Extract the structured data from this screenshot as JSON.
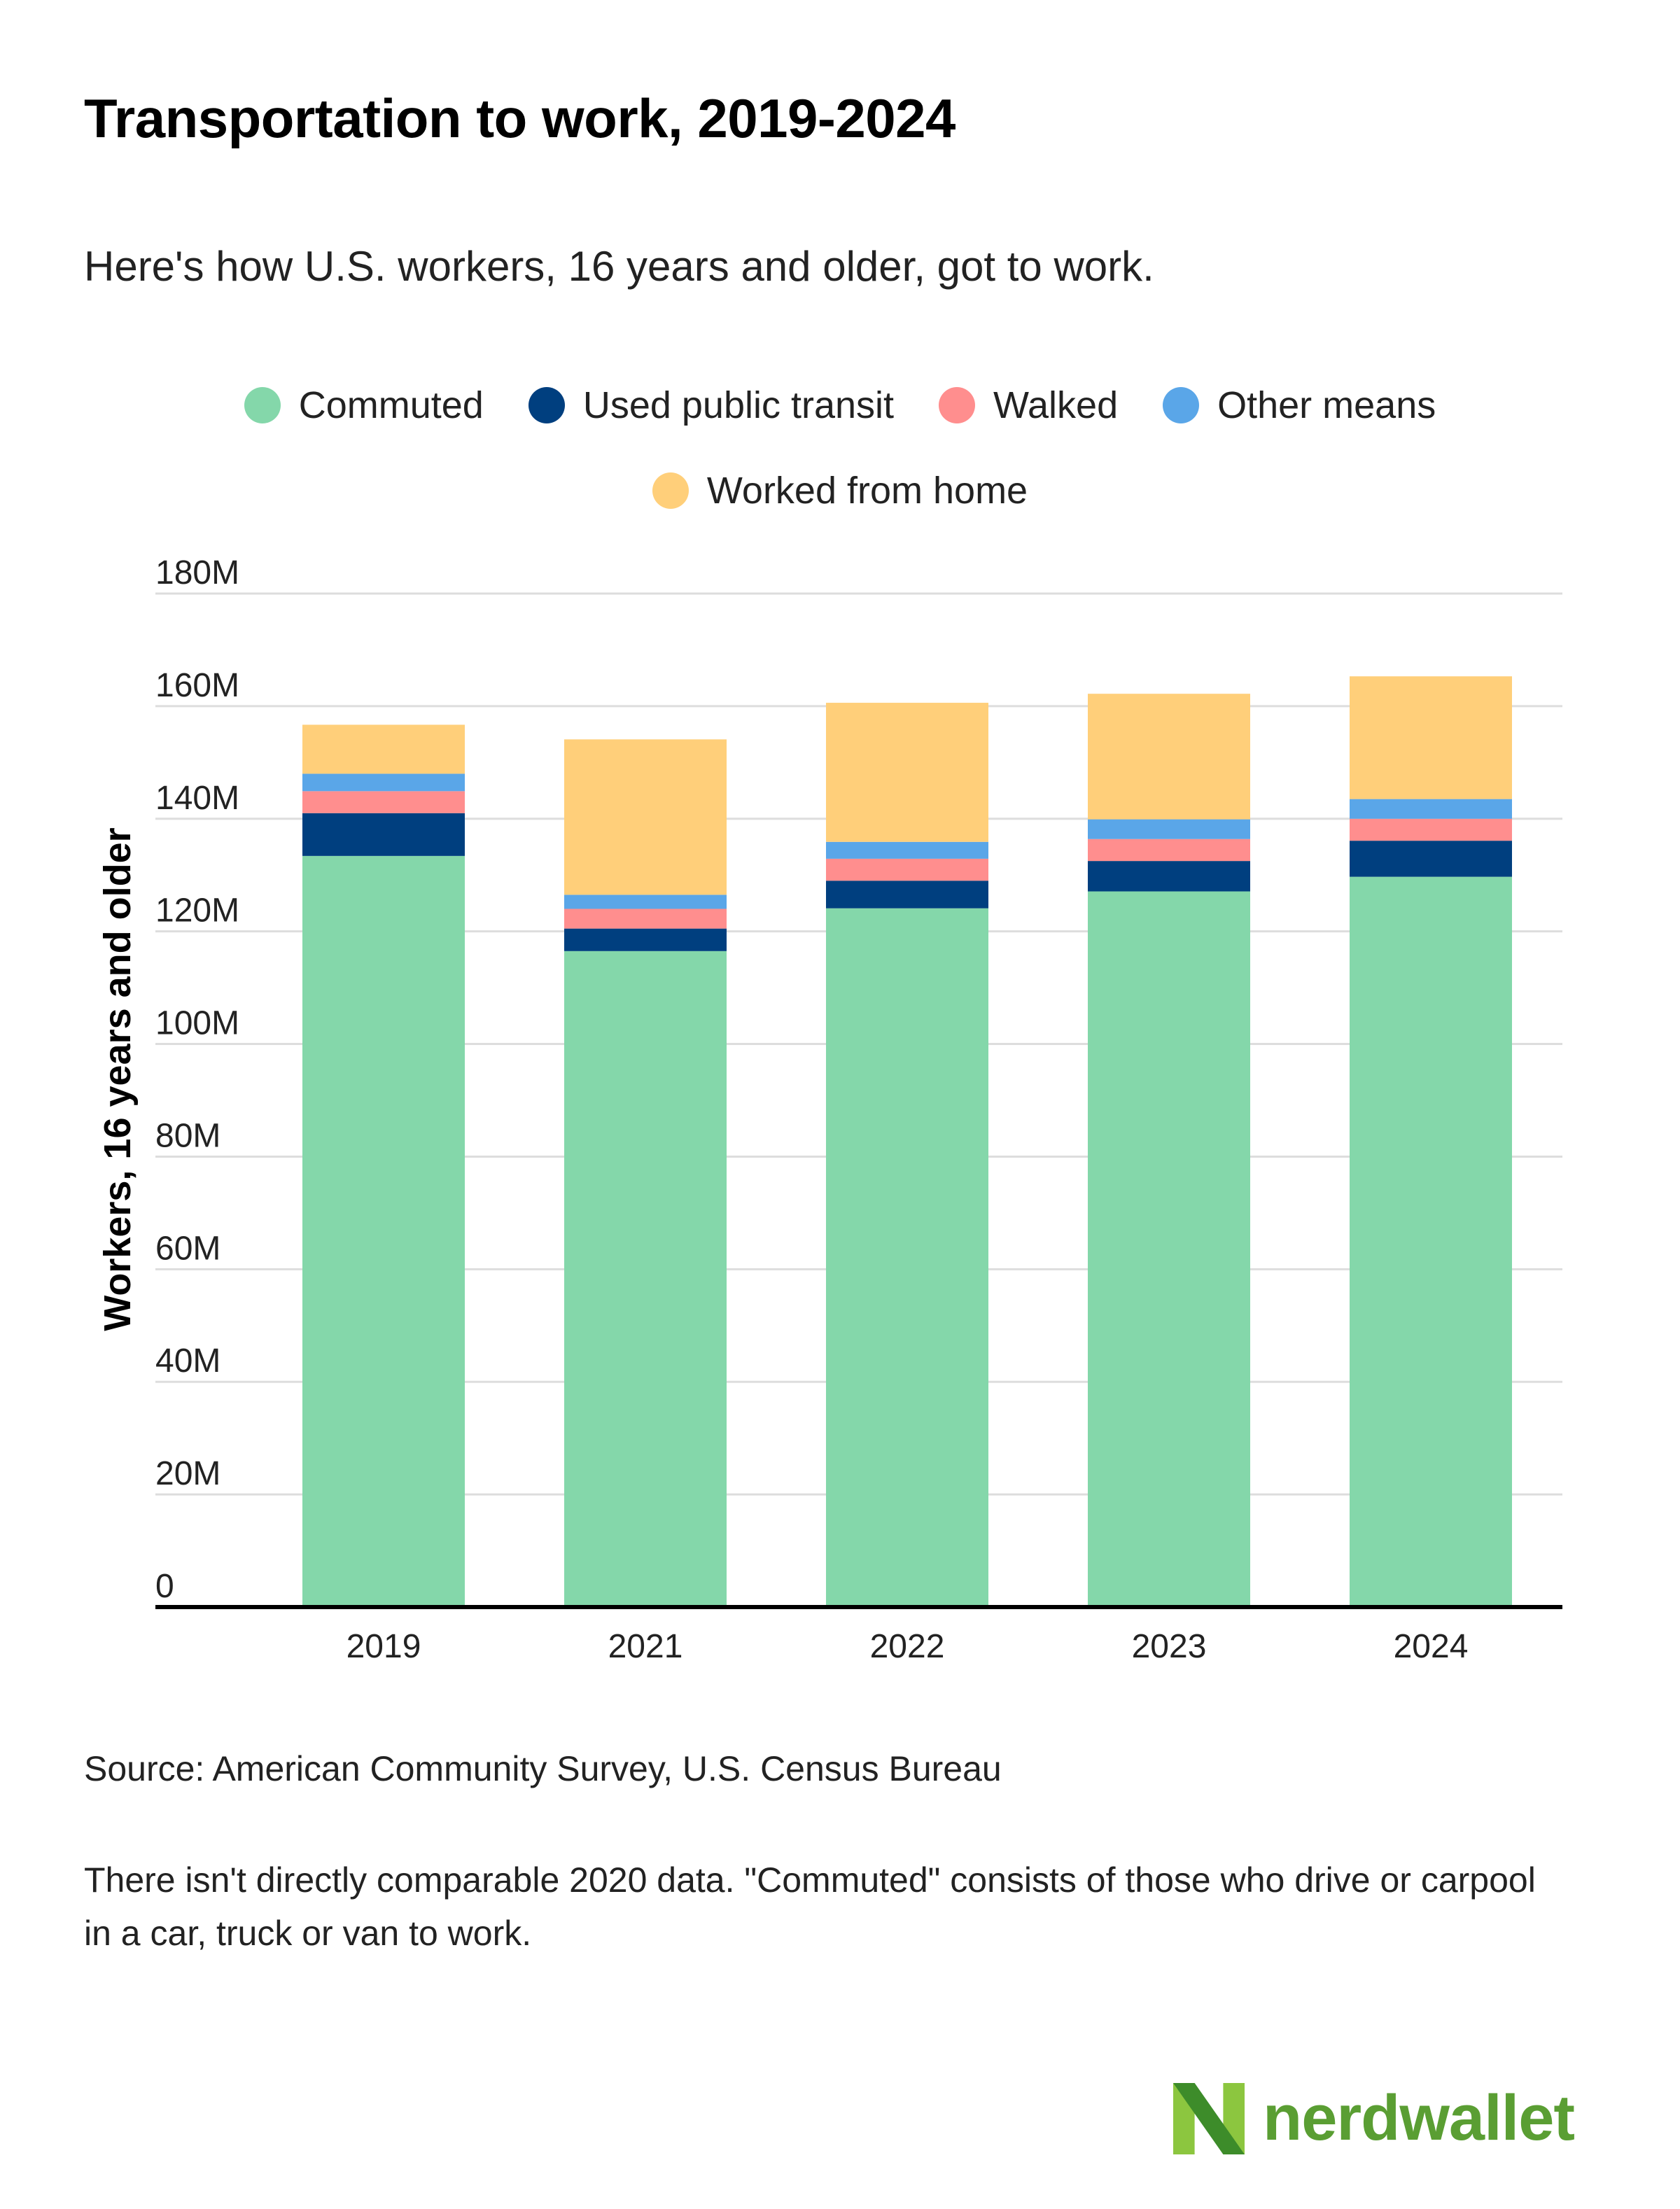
{
  "title": "Transportation to work, 2019-2024",
  "subtitle": "Here's how U.S. workers, 16 years and older, got to work.",
  "source": "Source: American Community Survey, U.S. Census Bureau",
  "footnote": "There isn't directly comparable 2020 data. \"Commuted\" consists of those who drive or carpool in a car, truck or van to work.",
  "brand": {
    "name": "nerdwallet",
    "color": "#5a9e33",
    "mark_colors": [
      "#3d8c2a",
      "#8cc63f"
    ]
  },
  "chart_data": {
    "type": "bar",
    "stacked": true,
    "title": "Transportation to work, 2019-2024",
    "subtitle": "Here's how U.S. workers, 16 years and older, got to work.",
    "xlabel": "",
    "ylabel": "Workers, 16 years and older",
    "categories": [
      "2019",
      "2021",
      "2022",
      "2023",
      "2024"
    ],
    "ylim": [
      0,
      180000000
    ],
    "yticks": [
      0,
      20000000,
      40000000,
      60000000,
      80000000,
      100000000,
      120000000,
      140000000,
      160000000,
      180000000
    ],
    "ytick_labels": [
      "0",
      "20M",
      "40M",
      "60M",
      "80M",
      "100M",
      "120M",
      "140M",
      "160M",
      "180M"
    ],
    "grid": true,
    "legend_position": "top-center",
    "series": [
      {
        "name": "Commuted",
        "color": "#84d7aa",
        "values": [
          133400000,
          116500000,
          124100000,
          127100000,
          129700000
        ]
      },
      {
        "name": "Used public transit",
        "color": "#003f7f",
        "values": [
          7600000,
          4000000,
          4900000,
          5400000,
          6400000
        ]
      },
      {
        "name": "Walked",
        "color": "#ff8e8e",
        "values": [
          3900000,
          3500000,
          3900000,
          3900000,
          3900000
        ]
      },
      {
        "name": "Other means",
        "color": "#5aa6e8",
        "values": [
          3100000,
          2500000,
          3000000,
          3500000,
          3500000
        ]
      },
      {
        "name": "Worked from home",
        "color": "#ffcf7a",
        "values": [
          8700000,
          27600000,
          24700000,
          22300000,
          21800000
        ]
      }
    ]
  }
}
